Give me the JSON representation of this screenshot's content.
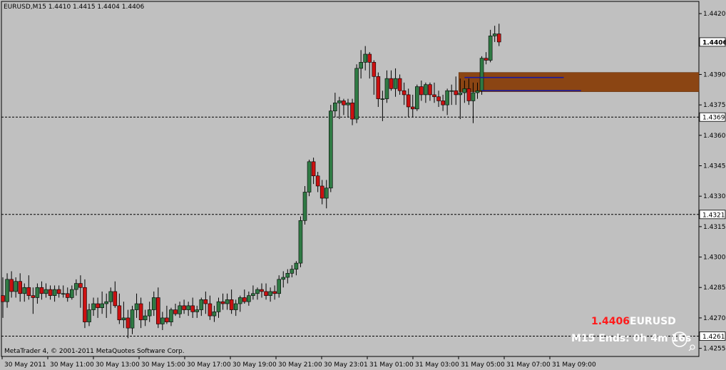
{
  "header": {
    "symbol_line": "EURUSD,M15  1.4410 1.4415 1.4404 1.4406"
  },
  "footer": {
    "copyright": "MetaTrader 4, © 2001-2011 MetaQuotes Software Corp."
  },
  "hud": {
    "price": "1.4406",
    "symbol": "EURUSD",
    "timer": "M15 Ends: 0h 4m 16s"
  },
  "icons": [
    "clock-icon",
    "pin-icon"
  ],
  "colors": {
    "background": "#c0c0c0",
    "bull": "#2f7a44",
    "bear": "#cc1111",
    "wick": "#000000",
    "zone": "#8b4513",
    "blue_line": "#1a1aa0",
    "hud_price": "#ff1a1a",
    "hud_text": "#ffffff"
  },
  "chart_data": {
    "type": "candlestick",
    "symbol": "EURUSD",
    "timeframe": "M15",
    "ylim": [
      1.4251,
      1.4426
    ],
    "yticks": [
      "1.4420",
      "1.4390",
      "1.4375",
      "1.4360",
      "1.4345",
      "1.4330",
      "1.4315",
      "1.4300",
      "1.4285",
      "1.4270",
      "1.4255"
    ],
    "xticks": [
      "30 May 2011",
      "30 May 11:00",
      "30 May 13:00",
      "30 May 15:00",
      "30 May 17:00",
      "30 May 19:00",
      "30 May 21:00",
      "30 May 23:01",
      "31 May 01:00",
      "31 May 03:00",
      "31 May 05:00",
      "31 May 07:00",
      "31 May 09:00"
    ],
    "price_labels": [
      {
        "value": 1.4406,
        "label": "1.4406",
        "highlight": true
      },
      {
        "value": 1.4369,
        "label": "1.4369",
        "line": true
      },
      {
        "value": 1.4321,
        "label": "1.4321",
        "line": true
      },
      {
        "value": 1.4261,
        "label": "1.4261",
        "line": true
      }
    ],
    "zone": {
      "top": 1.4391,
      "bottom": 1.43815,
      "from_bar": 106
    },
    "blue_lines": [
      {
        "value": 1.43885,
        "from_bar": 107,
        "to_bar": 130
      },
      {
        "value": 1.4382,
        "from_bar": 111,
        "to_bar": 134
      }
    ],
    "candles": [
      [
        1.4281,
        1.429,
        1.427,
        1.4278
      ],
      [
        1.4278,
        1.4292,
        1.4275,
        1.4289
      ],
      [
        1.4289,
        1.4293,
        1.428,
        1.4283
      ],
      [
        1.4283,
        1.429,
        1.428,
        1.4288
      ],
      [
        1.4288,
        1.4292,
        1.4278,
        1.4282
      ],
      [
        1.4282,
        1.4287,
        1.4278,
        1.4285
      ],
      [
        1.4285,
        1.4291,
        1.4279,
        1.4281
      ],
      [
        1.4281,
        1.4285,
        1.4272,
        1.428
      ],
      [
        1.428,
        1.4287,
        1.4277,
        1.4285
      ],
      [
        1.4285,
        1.4288,
        1.4279,
        1.4282
      ],
      [
        1.4282,
        1.4287,
        1.428,
        1.4284
      ],
      [
        1.4284,
        1.4286,
        1.4279,
        1.4281
      ],
      [
        1.4281,
        1.4286,
        1.4278,
        1.4284
      ],
      [
        1.4284,
        1.4286,
        1.428,
        1.4282
      ],
      [
        1.4282,
        1.4286,
        1.428,
        1.4282
      ],
      [
        1.4282,
        1.4285,
        1.4278,
        1.428
      ],
      [
        1.428,
        1.4286,
        1.4279,
        1.4284
      ],
      [
        1.4284,
        1.4289,
        1.4281,
        1.4287
      ],
      [
        1.4287,
        1.4291,
        1.4275,
        1.4285
      ],
      [
        1.4285,
        1.4289,
        1.4265,
        1.4268
      ],
      [
        1.4268,
        1.4277,
        1.4266,
        1.4274
      ],
      [
        1.4274,
        1.428,
        1.4271,
        1.4277
      ],
      [
        1.4277,
        1.428,
        1.427,
        1.4275
      ],
      [
        1.4275,
        1.4283,
        1.4272,
        1.4277
      ],
      [
        1.4277,
        1.4282,
        1.427,
        1.4278
      ],
      [
        1.4278,
        1.4285,
        1.4272,
        1.4283
      ],
      [
        1.4283,
        1.4288,
        1.4275,
        1.4276
      ],
      [
        1.4276,
        1.4282,
        1.4267,
        1.4269
      ],
      [
        1.4269,
        1.4278,
        1.4265,
        1.427
      ],
      [
        1.427,
        1.4274,
        1.426,
        1.4265
      ],
      [
        1.4265,
        1.4276,
        1.4262,
        1.4274
      ],
      [
        1.4274,
        1.4282,
        1.427,
        1.4277
      ],
      [
        1.4277,
        1.428,
        1.4265,
        1.4269
      ],
      [
        1.4269,
        1.4274,
        1.4266,
        1.4271
      ],
      [
        1.4271,
        1.4278,
        1.4268,
        1.4274
      ],
      [
        1.4274,
        1.4283,
        1.4271,
        1.428
      ],
      [
        1.428,
        1.4285,
        1.4265,
        1.4267
      ],
      [
        1.4267,
        1.4273,
        1.4264,
        1.427
      ],
      [
        1.427,
        1.4276,
        1.4267,
        1.4268
      ],
      [
        1.4268,
        1.4275,
        1.4266,
        1.4274
      ],
      [
        1.4274,
        1.4277,
        1.4271,
        1.4272
      ],
      [
        1.4272,
        1.4278,
        1.427,
        1.4276
      ],
      [
        1.4276,
        1.4279,
        1.4272,
        1.4274
      ],
      [
        1.4274,
        1.4278,
        1.4271,
        1.4276
      ],
      [
        1.4276,
        1.428,
        1.427,
        1.4273
      ],
      [
        1.4273,
        1.4276,
        1.427,
        1.4274
      ],
      [
        1.4274,
        1.428,
        1.4271,
        1.4279
      ],
      [
        1.4279,
        1.4283,
        1.4272,
        1.4277
      ],
      [
        1.4277,
        1.4281,
        1.4269,
        1.4271
      ],
      [
        1.4271,
        1.4276,
        1.4268,
        1.4273
      ],
      [
        1.4273,
        1.428,
        1.427,
        1.4278
      ],
      [
        1.4278,
        1.4282,
        1.4274,
        1.4277
      ],
      [
        1.4277,
        1.4282,
        1.4274,
        1.4279
      ],
      [
        1.4279,
        1.4284,
        1.4272,
        1.4274
      ],
      [
        1.4274,
        1.4279,
        1.4271,
        1.4277
      ],
      [
        1.4277,
        1.4281,
        1.4273,
        1.428
      ],
      [
        1.428,
        1.4284,
        1.4277,
        1.4278
      ],
      [
        1.4278,
        1.4283,
        1.4276,
        1.4281
      ],
      [
        1.4281,
        1.4286,
        1.4279,
        1.4282
      ],
      [
        1.4282,
        1.4285,
        1.4279,
        1.4284
      ],
      [
        1.4284,
        1.4287,
        1.428,
        1.4283
      ],
      [
        1.4283,
        1.4287,
        1.4279,
        1.4281
      ],
      [
        1.4281,
        1.4285,
        1.4278,
        1.4283
      ],
      [
        1.4283,
        1.4286,
        1.4279,
        1.4282
      ],
      [
        1.4282,
        1.4291,
        1.428,
        1.4289
      ],
      [
        1.4289,
        1.4293,
        1.4285,
        1.429
      ],
      [
        1.429,
        1.4294,
        1.4287,
        1.4292
      ],
      [
        1.4292,
        1.4296,
        1.429,
        1.4294
      ],
      [
        1.4294,
        1.4298,
        1.4291,
        1.4297
      ],
      [
        1.4297,
        1.432,
        1.4295,
        1.4318
      ],
      [
        1.4318,
        1.4335,
        1.4316,
        1.4332
      ],
      [
        1.4332,
        1.4348,
        1.433,
        1.4347
      ],
      [
        1.4347,
        1.4349,
        1.4336,
        1.434
      ],
      [
        1.434,
        1.4342,
        1.4332,
        1.4335
      ],
      [
        1.4335,
        1.4338,
        1.4326,
        1.4329
      ],
      [
        1.4329,
        1.4338,
        1.4324,
        1.4334
      ],
      [
        1.4334,
        1.4375,
        1.4332,
        1.4372
      ],
      [
        1.4372,
        1.4381,
        1.4369,
        1.4376
      ],
      [
        1.4376,
        1.4379,
        1.4368,
        1.4377
      ],
      [
        1.4377,
        1.4378,
        1.437,
        1.4375
      ],
      [
        1.4375,
        1.4378,
        1.4369,
        1.4376
      ],
      [
        1.4376,
        1.4378,
        1.4365,
        1.4368
      ],
      [
        1.4368,
        1.4395,
        1.4366,
        1.4393
      ],
      [
        1.4393,
        1.4402,
        1.4388,
        1.4396
      ],
      [
        1.4396,
        1.4404,
        1.4392,
        1.44
      ],
      [
        1.44,
        1.4401,
        1.4388,
        1.4396
      ],
      [
        1.4396,
        1.4397,
        1.438,
        1.4389
      ],
      [
        1.4389,
        1.4391,
        1.4374,
        1.4378
      ],
      [
        1.4378,
        1.4382,
        1.4367,
        1.4378
      ],
      [
        1.4378,
        1.4392,
        1.4376,
        1.4388
      ],
      [
        1.4388,
        1.4392,
        1.4382,
        1.4383
      ],
      [
        1.4383,
        1.4393,
        1.4379,
        1.4388
      ],
      [
        1.4388,
        1.439,
        1.438,
        1.4382
      ],
      [
        1.4382,
        1.4386,
        1.4375,
        1.438
      ],
      [
        1.438,
        1.4383,
        1.4369,
        1.4374
      ],
      [
        1.4374,
        1.438,
        1.4369,
        1.4373
      ],
      [
        1.4373,
        1.4385,
        1.4372,
        1.4384
      ],
      [
        1.4384,
        1.4387,
        1.4377,
        1.438
      ],
      [
        1.438,
        1.4386,
        1.4376,
        1.4385
      ],
      [
        1.4385,
        1.4386,
        1.4377,
        1.438
      ],
      [
        1.438,
        1.4386,
        1.4376,
        1.4379
      ],
      [
        1.4379,
        1.4382,
        1.4374,
        1.4377
      ],
      [
        1.4377,
        1.438,
        1.4372,
        1.4375
      ],
      [
        1.4375,
        1.4383,
        1.437,
        1.4382
      ],
      [
        1.4382,
        1.4385,
        1.4375,
        1.4382
      ],
      [
        1.4382,
        1.4389,
        1.4375,
        1.438
      ],
      [
        1.438,
        1.4388,
        1.4368,
        1.4381
      ],
      [
        1.4381,
        1.4387,
        1.4376,
        1.4383
      ],
      [
        1.4383,
        1.4388,
        1.4375,
        1.4377
      ],
      [
        1.4377,
        1.4386,
        1.4366,
        1.4381
      ],
      [
        1.4381,
        1.4386,
        1.4378,
        1.4382
      ],
      [
        1.4382,
        1.4399,
        1.438,
        1.4398
      ],
      [
        1.4398,
        1.4401,
        1.4395,
        1.4397
      ],
      [
        1.4397,
        1.4412,
        1.4396,
        1.4409
      ],
      [
        1.4409,
        1.4414,
        1.4406,
        1.441
      ],
      [
        1.441,
        1.4415,
        1.4404,
        1.4406
      ]
    ]
  }
}
